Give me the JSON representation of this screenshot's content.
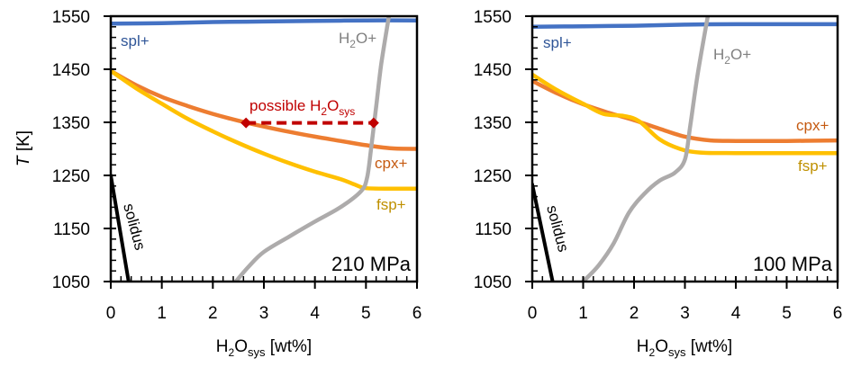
{
  "chart_data": [
    {
      "type": "line",
      "panel": "left",
      "pressure_label": "210 MPa",
      "xlabel": {
        "main": "H",
        "sub1": "2",
        "mid": "O",
        "sub2": "sys",
        "tail": " [wt%]"
      },
      "ylabel": {
        "italic": "T",
        "tail": " [K]"
      },
      "xlim": [
        0,
        6
      ],
      "ylim": [
        1050,
        1550
      ],
      "xticks": [
        0,
        1,
        2,
        3,
        4,
        5,
        6
      ],
      "yticks": [
        1050,
        1150,
        1250,
        1350,
        1450,
        1550
      ],
      "x_minor_per_major": 5,
      "y_minor_per_major": 5,
      "grid": false,
      "series": [
        {
          "name": "spl+",
          "color": "#4472C4",
          "label_color": "#2F5597",
          "points": [
            [
              0,
              1536
            ],
            [
              1,
              1537
            ],
            [
              2,
              1539
            ],
            [
              3,
              1540
            ],
            [
              4,
              1541
            ],
            [
              5,
              1542
            ],
            [
              6,
              1542
            ]
          ]
        },
        {
          "name": "cpx+",
          "color": "#ED7D31",
          "label_color": "#C55A11",
          "points": [
            [
              0,
              1447
            ],
            [
              0.5,
              1420
            ],
            [
              1,
              1398
            ],
            [
              1.5,
              1381
            ],
            [
              2,
              1366
            ],
            [
              2.5,
              1353
            ],
            [
              3,
              1342
            ],
            [
              3.5,
              1332
            ],
            [
              4,
              1323
            ],
            [
              4.5,
              1315
            ],
            [
              5,
              1307
            ],
            [
              5.5,
              1301
            ],
            [
              6,
              1300
            ]
          ]
        },
        {
          "name": "fsp+",
          "color": "#FFC000",
          "label_color": "#BF9000",
          "points": [
            [
              0,
              1447
            ],
            [
              0.5,
              1414
            ],
            [
              1,
              1385
            ],
            [
              1.5,
              1357
            ],
            [
              2,
              1333
            ],
            [
              2.5,
              1311
            ],
            [
              3,
              1291
            ],
            [
              3.5,
              1273
            ],
            [
              4,
              1257
            ],
            [
              4.5,
              1243
            ],
            [
              4.8,
              1232
            ],
            [
              5,
              1226
            ],
            [
              5.5,
              1225
            ],
            [
              6,
              1225
            ]
          ]
        },
        {
          "name": "H2O+",
          "color": "#ADABAB",
          "label_color": "#808080",
          "points": [
            [
              2.45,
              1050
            ],
            [
              2.7,
              1078
            ],
            [
              3.0,
              1106
            ],
            [
              3.5,
              1135
            ],
            [
              4.0,
              1163
            ],
            [
              4.5,
              1190
            ],
            [
              4.9,
              1220
            ],
            [
              5.02,
              1245
            ],
            [
              5.1,
              1300
            ],
            [
              5.2,
              1380
            ],
            [
              5.3,
              1460
            ],
            [
              5.45,
              1550
            ]
          ]
        },
        {
          "name": "solidus",
          "color": "#000000",
          "label_color": "#000000",
          "points": [
            [
              0,
              1250
            ],
            [
              0.35,
              1050
            ]
          ]
        }
      ],
      "annotation": {
        "text": "possible H",
        "sub1": "2",
        "mid": "O",
        "sub2": "sys",
        "color": "#C00000",
        "from": [
          2.65,
          1349
        ],
        "to": [
          5.15,
          1349
        ]
      },
      "labels": {
        "spl": "spl+",
        "h2o_main": "H",
        "h2o_sub": "2",
        "h2o_tail": "O+",
        "cpx": "cpx+",
        "fsp": "fsp+",
        "solidus": "solidus"
      }
    },
    {
      "type": "line",
      "panel": "right",
      "pressure_label": "100 MPa",
      "xlabel": {
        "main": "H",
        "sub1": "2",
        "mid": "O",
        "sub2": "sys",
        "tail": " [wt%]"
      },
      "xlim": [
        0,
        6
      ],
      "ylim": [
        1050,
        1550
      ],
      "xticks": [
        0,
        1,
        2,
        3,
        4,
        5,
        6
      ],
      "yticks": [
        1050,
        1150,
        1250,
        1350,
        1450,
        1550
      ],
      "x_minor_per_major": 5,
      "y_minor_per_major": 5,
      "grid": false,
      "series": [
        {
          "name": "spl+",
          "color": "#4472C4",
          "label_color": "#2F5597",
          "points": [
            [
              0,
              1530
            ],
            [
              1,
              1531
            ],
            [
              2,
              1532
            ],
            [
              3,
              1534
            ],
            [
              4,
              1535
            ],
            [
              5,
              1535
            ],
            [
              6,
              1535
            ]
          ]
        },
        {
          "name": "cpx+",
          "color": "#ED7D31",
          "label_color": "#C55A11",
          "points": [
            [
              0,
              1428
            ],
            [
              0.5,
              1404
            ],
            [
              1,
              1384
            ],
            [
              1.5,
              1368
            ],
            [
              2,
              1354
            ],
            [
              2.5,
              1338
            ],
            [
              3,
              1323
            ],
            [
              3.5,
              1316
            ],
            [
              4,
              1315
            ],
            [
              5,
              1315
            ],
            [
              6,
              1316
            ]
          ]
        },
        {
          "name": "fsp+",
          "color": "#FFC000",
          "label_color": "#BF9000",
          "points": [
            [
              0,
              1440
            ],
            [
              0.5,
              1410
            ],
            [
              1,
              1385
            ],
            [
              1.4,
              1366
            ],
            [
              1.8,
              1362
            ],
            [
              2.1,
              1352
            ],
            [
              2.5,
              1318
            ],
            [
              2.9,
              1300
            ],
            [
              3.3,
              1293
            ],
            [
              4,
              1292
            ],
            [
              5,
              1292
            ],
            [
              6,
              1292
            ]
          ]
        },
        {
          "name": "H2O+",
          "color": "#ADABAB",
          "label_color": "#808080",
          "points": [
            [
              1.0,
              1050
            ],
            [
              1.3,
              1080
            ],
            [
              1.6,
              1122
            ],
            [
              1.9,
              1180
            ],
            [
              2.2,
              1215
            ],
            [
              2.5,
              1240
            ],
            [
              2.8,
              1255
            ],
            [
              3.0,
              1280
            ],
            [
              3.1,
              1340
            ],
            [
              3.25,
              1440
            ],
            [
              3.45,
              1550
            ]
          ]
        },
        {
          "name": "solidus",
          "color": "#000000",
          "label_color": "#000000",
          "points": [
            [
              0,
              1233
            ],
            [
              0.4,
              1050
            ]
          ]
        }
      ],
      "labels": {
        "spl": "spl+",
        "h2o_main": "H",
        "h2o_sub": "2",
        "h2o_tail": "O+",
        "cpx": "cpx+",
        "fsp": "fsp+",
        "solidus": "solidus"
      }
    }
  ]
}
